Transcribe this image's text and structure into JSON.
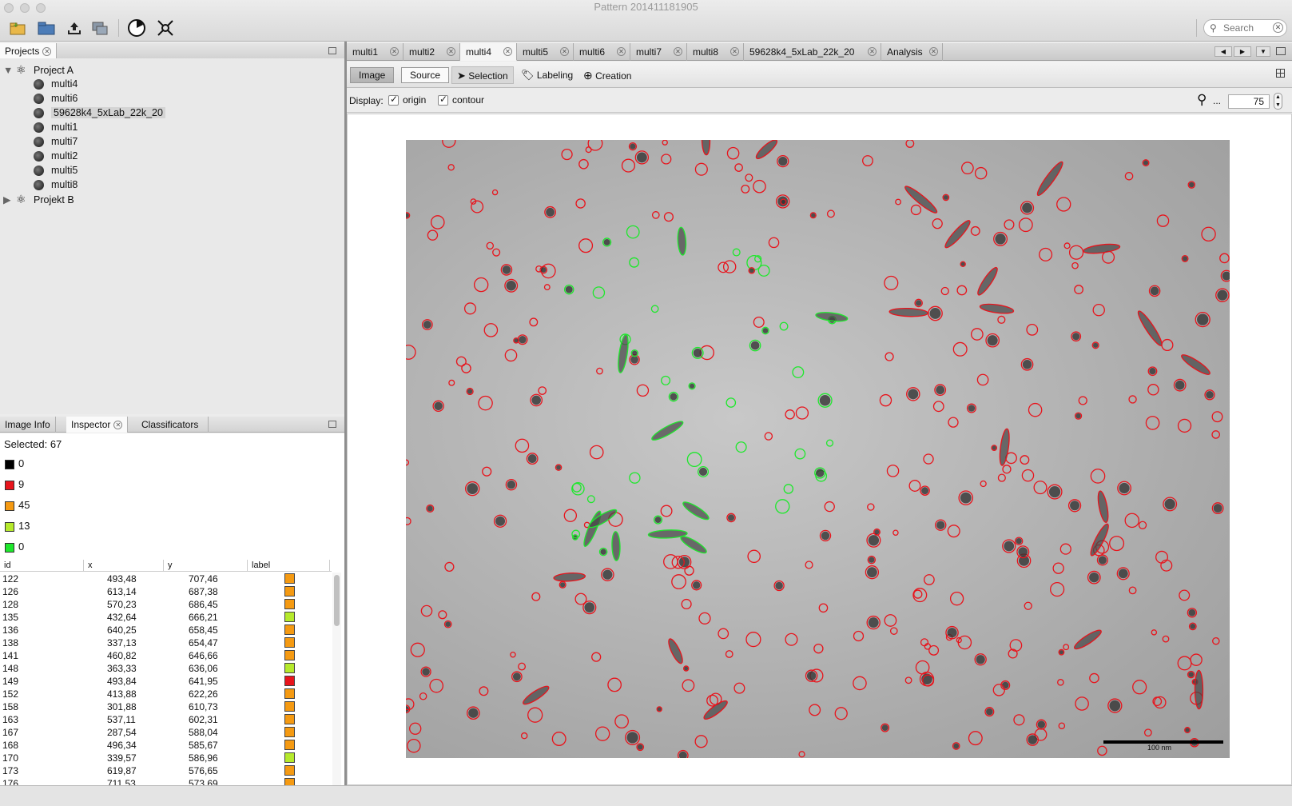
{
  "window": {
    "title": "Pattern 201411181905"
  },
  "search": {
    "placeholder": "Search"
  },
  "projects_panel": {
    "tab": "Projects",
    "tree": [
      {
        "label": "Project A",
        "expanded": true
      },
      {
        "label": "multi4"
      },
      {
        "label": "multi6"
      },
      {
        "label": "59628k4_5xLab_22k_20",
        "selected": true
      },
      {
        "label": "multi1"
      },
      {
        "label": "multi7"
      },
      {
        "label": "multi2"
      },
      {
        "label": "multi5"
      },
      {
        "label": "multi8"
      },
      {
        "label": "Projekt B",
        "expanded": false
      }
    ]
  },
  "bottom_tabs": [
    "Image Info",
    "Inspector",
    "Classificators"
  ],
  "inspector": {
    "selected_label": "Selected:",
    "selected_count": "67",
    "legend": [
      {
        "color": "#000000",
        "count": "0"
      },
      {
        "color": "#e8141c",
        "count": "9"
      },
      {
        "color": "#f59a12",
        "count": "45"
      },
      {
        "color": "#b6ea2c",
        "count": "13"
      },
      {
        "color": "#1ee82c",
        "count": "0"
      }
    ],
    "columns": [
      "id",
      "x",
      "y",
      "label"
    ],
    "rows": [
      {
        "id": "122",
        "x": "493,48",
        "y": "707,46",
        "label": "#f59a12"
      },
      {
        "id": "126",
        "x": "613,14",
        "y": "687,38",
        "label": "#f59a12"
      },
      {
        "id": "128",
        "x": "570,23",
        "y": "686,45",
        "label": "#f59a12"
      },
      {
        "id": "135",
        "x": "432,64",
        "y": "666,21",
        "label": "#b6ea2c"
      },
      {
        "id": "136",
        "x": "640,25",
        "y": "658,45",
        "label": "#f59a12"
      },
      {
        "id": "138",
        "x": "337,13",
        "y": "654,47",
        "label": "#f59a12"
      },
      {
        "id": "141",
        "x": "460,82",
        "y": "646,66",
        "label": "#f59a12"
      },
      {
        "id": "148",
        "x": "363,33",
        "y": "636,06",
        "label": "#b6ea2c"
      },
      {
        "id": "149",
        "x": "493,84",
        "y": "641,95",
        "label": "#e8141c"
      },
      {
        "id": "152",
        "x": "413,88",
        "y": "622,26",
        "label": "#f59a12"
      },
      {
        "id": "158",
        "x": "301,88",
        "y": "610,73",
        "label": "#f59a12"
      },
      {
        "id": "163",
        "x": "537,11",
        "y": "602,31",
        "label": "#f59a12"
      },
      {
        "id": "167",
        "x": "287,54",
        "y": "588,04",
        "label": "#f59a12"
      },
      {
        "id": "168",
        "x": "496,34",
        "y": "585,67",
        "label": "#f59a12"
      },
      {
        "id": "170",
        "x": "339,57",
        "y": "586,96",
        "label": "#b6ea2c"
      },
      {
        "id": "173",
        "x": "619,87",
        "y": "576,65",
        "label": "#f59a12"
      },
      {
        "id": "176",
        "x": "711,53",
        "y": "573,69",
        "label": "#f59a12"
      }
    ]
  },
  "doc_tabs": [
    "multi1",
    "multi2",
    "multi4",
    "multi5",
    "multi6",
    "multi7",
    "multi8",
    "59628k4_5xLab_22k_20",
    "Analysis"
  ],
  "active_doc_tab": "multi4",
  "view_toggle": {
    "image": "Image",
    "source": "Source"
  },
  "modes": {
    "selection": "Selection",
    "labeling": "Labeling",
    "creation": "Creation"
  },
  "display": {
    "label": "Display:",
    "origin": "origin",
    "contour": "contour"
  },
  "zoom": {
    "value": "75",
    "ellipsis": "..."
  },
  "scale_bar_label": "100 nm",
  "colors": {
    "contour_red": "#e8141c",
    "contour_green": "#1ee82c"
  }
}
